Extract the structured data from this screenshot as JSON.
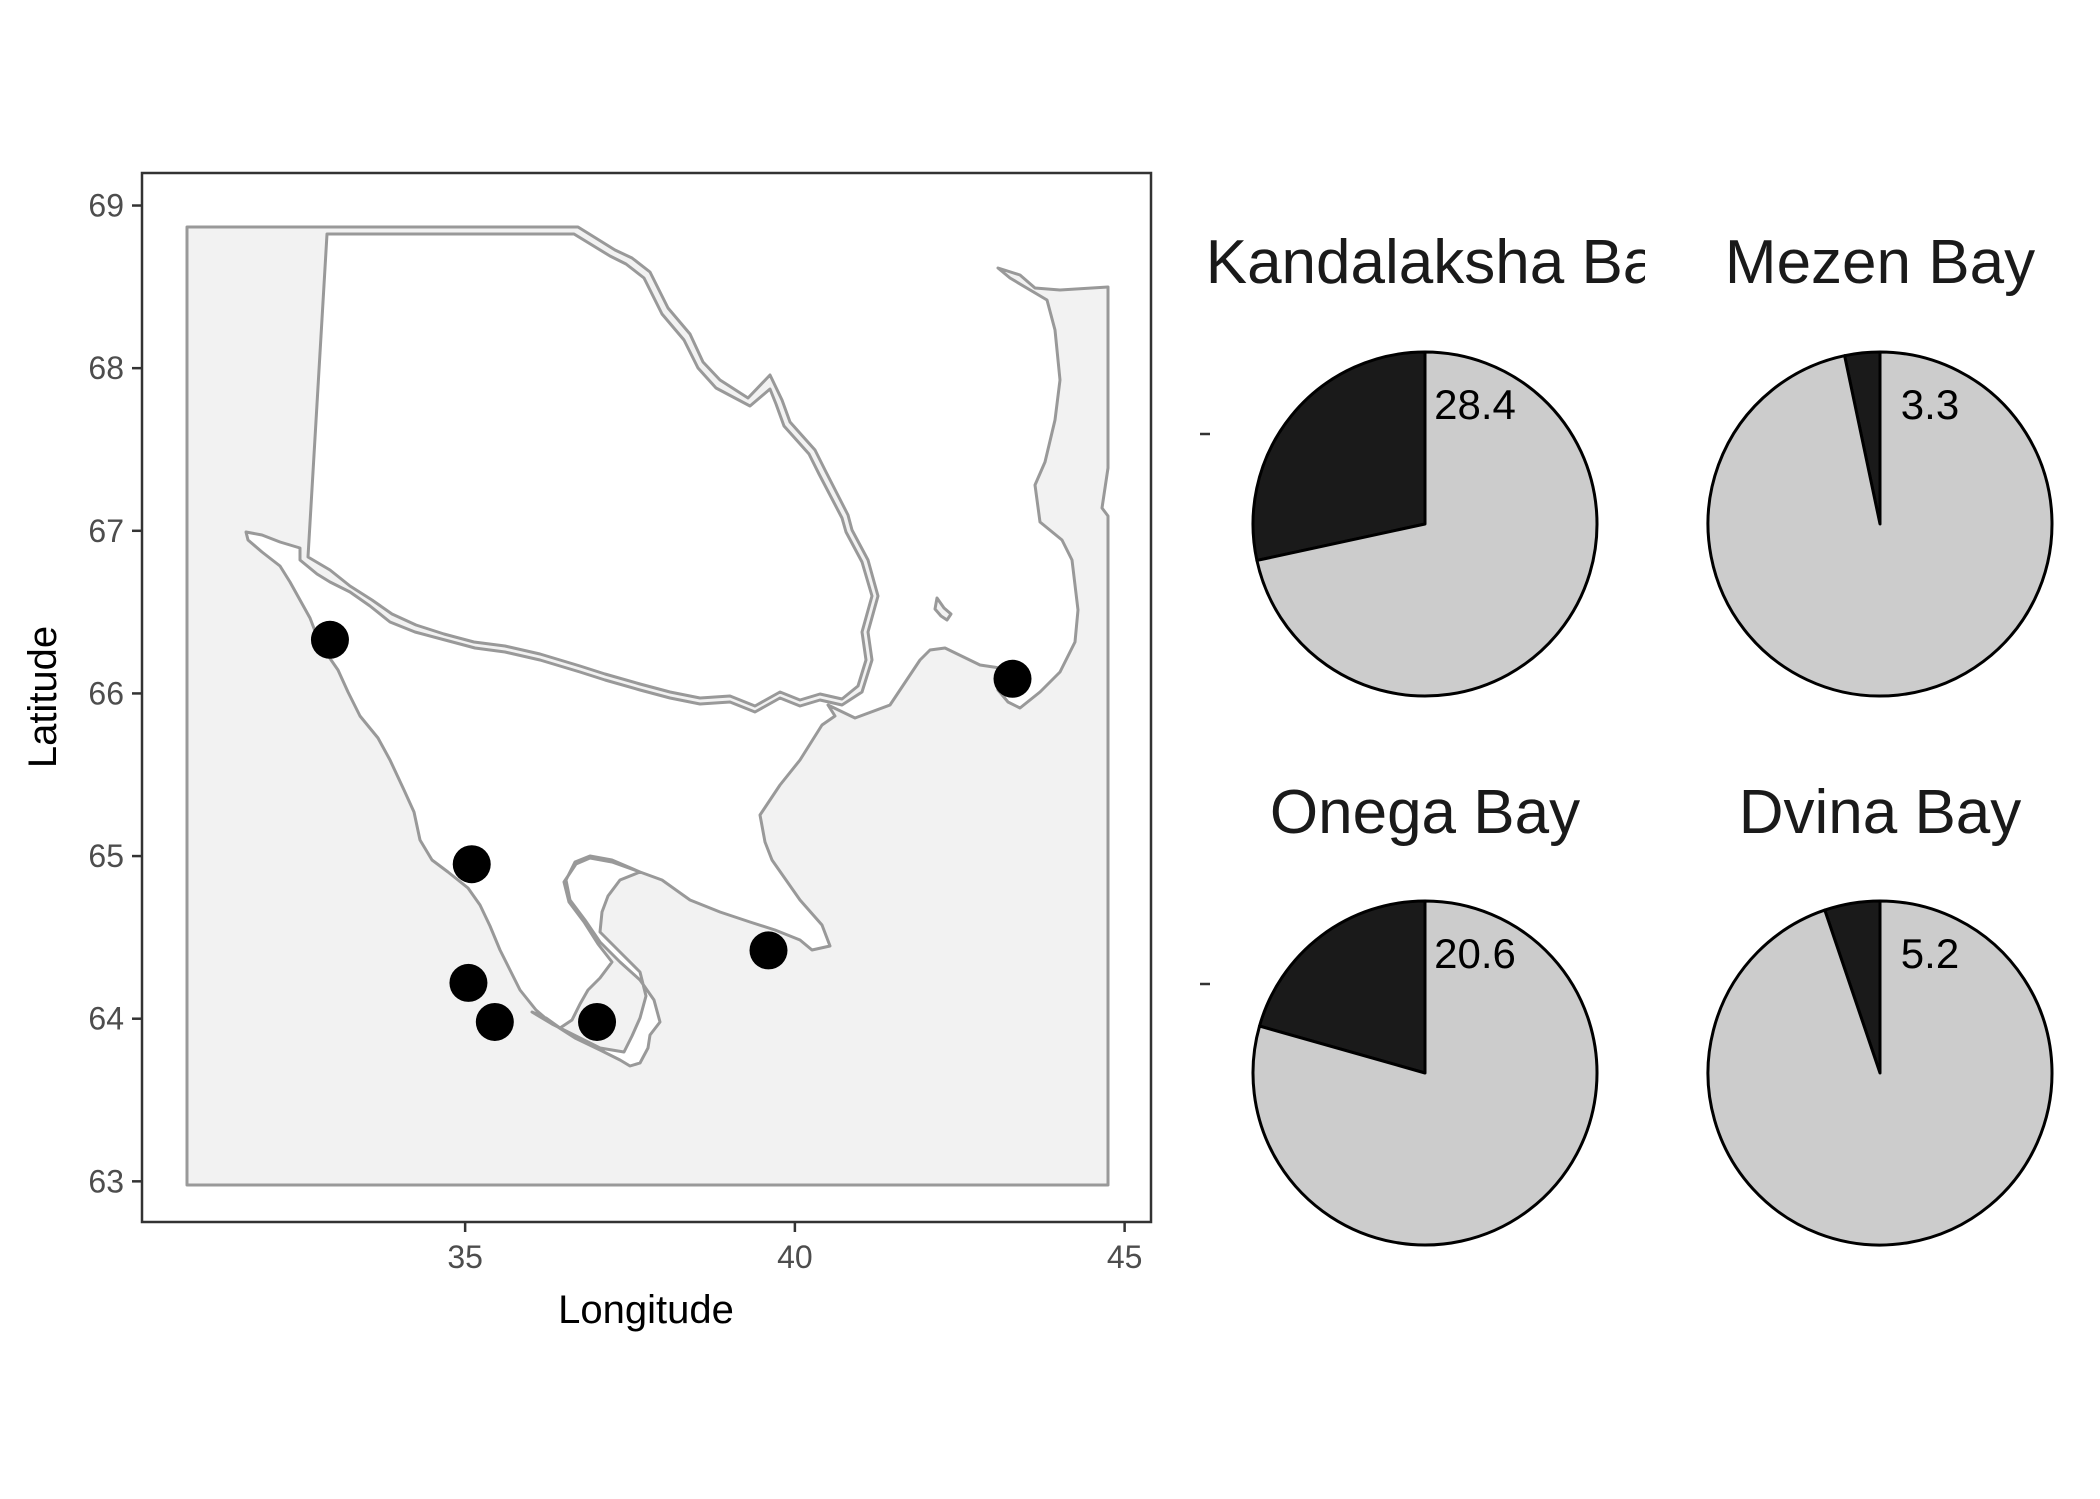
{
  "map": {
    "xlabel": "Longitude",
    "ylabel": "Latitude",
    "x_range": [
      30.1,
      45.4
    ],
    "y_range": [
      62.75,
      69.2
    ],
    "x_ticks": [
      {
        "value": 35,
        "label": "35"
      },
      {
        "value": 40,
        "label": "40"
      },
      {
        "value": 45,
        "label": "45"
      }
    ],
    "y_ticks": [
      {
        "value": 63,
        "label": "63"
      },
      {
        "value": 64,
        "label": "64"
      },
      {
        "value": 65,
        "label": "65"
      },
      {
        "value": 66,
        "label": "66"
      },
      {
        "value": 67,
        "label": "67"
      },
      {
        "value": 68,
        "label": "68"
      },
      {
        "value": 69,
        "label": "69"
      }
    ],
    "sites": [
      {
        "lon": 32.95,
        "lat": 66.33
      },
      {
        "lon": 35.1,
        "lat": 64.95
      },
      {
        "lon": 35.05,
        "lat": 64.22
      },
      {
        "lon": 35.45,
        "lat": 63.98
      },
      {
        "lon": 37.0,
        "lat": 63.98
      },
      {
        "lon": 39.6,
        "lat": 64.42
      },
      {
        "lon": 43.3,
        "lat": 66.09
      }
    ],
    "colors": {
      "land": "#f2f2f2",
      "sea": "#ffffff",
      "coast": "#999999",
      "point": "#000000",
      "frame": "#333333"
    }
  },
  "chart_data": [
    {
      "type": "pie",
      "title": "Kandalaksha Bay",
      "title_visible": "Kandalaksha Ba",
      "values": [
        28.4,
        71.6
      ],
      "labels": [
        "28.4",
        ""
      ],
      "colors": [
        "#1a1a1a",
        "#cccccc"
      ]
    },
    {
      "type": "pie",
      "title": "Mezen Bay",
      "values": [
        3.3,
        96.7
      ],
      "labels": [
        "3.3",
        ""
      ],
      "colors": [
        "#1a1a1a",
        "#cccccc"
      ]
    },
    {
      "type": "pie",
      "title": "Onega Bay",
      "values": [
        20.6,
        79.4
      ],
      "labels": [
        "20.6",
        ""
      ],
      "colors": [
        "#1a1a1a",
        "#cccccc"
      ]
    },
    {
      "type": "pie",
      "title": "Dvina Bay",
      "values": [
        5.2,
        94.8
      ],
      "labels": [
        "5.2",
        ""
      ],
      "colors": [
        "#1a1a1a",
        "#cccccc"
      ]
    }
  ]
}
